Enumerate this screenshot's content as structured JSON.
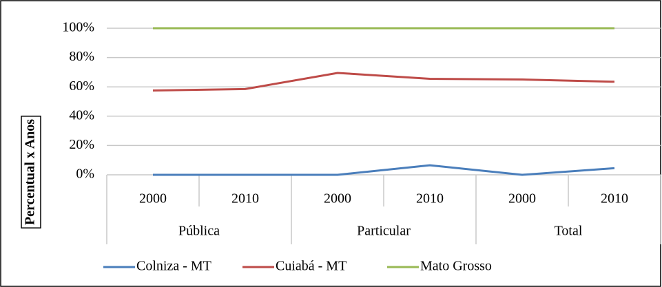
{
  "chart_data": {
    "type": "line",
    "y_label": "Percentual x Anos",
    "categories": [
      "2000",
      "2010",
      "2000",
      "2010",
      "2000",
      "2010"
    ],
    "category_groups": [
      "Pública",
      "Particular",
      "Total"
    ],
    "series": [
      {
        "name": "Colniza - MT",
        "color": "#4a7ebb",
        "values": [
          0,
          0,
          0,
          6.5,
          0,
          4.5
        ]
      },
      {
        "name": "Cuiabá - MT",
        "color": "#be4b48",
        "values": [
          57.5,
          58.5,
          69.5,
          65.5,
          65,
          63.5
        ]
      },
      {
        "name": "Mato Grosso",
        "color": "#98b954",
        "values": [
          100,
          100,
          100,
          100,
          100,
          100
        ]
      }
    ],
    "ylim": [
      0,
      100
    ],
    "yticks": [
      {
        "value": 0,
        "label": "0%"
      },
      {
        "value": 20,
        "label": "20%"
      },
      {
        "value": 40,
        "label": "40%"
      },
      {
        "value": 60,
        "label": "60%"
      },
      {
        "value": 80,
        "label": "80%"
      },
      {
        "value": 100,
        "label": "100%"
      }
    ],
    "grid": true
  }
}
